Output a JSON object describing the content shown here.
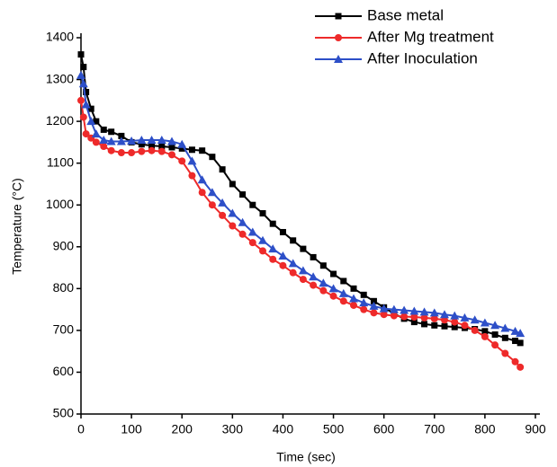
{
  "chart_data": {
    "type": "line",
    "x_label": "Time (sec)",
    "y_label": "Temperature (°C)",
    "x": [
      0,
      5,
      10,
      20,
      30,
      45,
      60,
      80,
      100,
      120,
      140,
      160,
      180,
      200,
      220,
      240,
      260,
      280,
      300,
      320,
      340,
      360,
      380,
      400,
      420,
      440,
      460,
      480,
      500,
      520,
      540,
      560,
      580,
      600,
      620,
      640,
      660,
      680,
      700,
      720,
      740,
      760,
      780,
      800,
      820,
      840,
      860,
      870
    ],
    "series": [
      {
        "name": "Base metal",
        "color": "#000000",
        "marker": "square",
        "values": [
          1360,
          1330,
          1270,
          1230,
          1200,
          1180,
          1175,
          1165,
          1150,
          1145,
          1142,
          1140,
          1138,
          1135,
          1132,
          1130,
          1115,
          1085,
          1050,
          1025,
          1000,
          980,
          955,
          935,
          915,
          895,
          875,
          855,
          835,
          818,
          800,
          785,
          770,
          755,
          740,
          728,
          720,
          715,
          712,
          710,
          708,
          706,
          703,
          698,
          690,
          682,
          675,
          670
        ]
      },
      {
        "name": "After Mg treatment",
        "color": "#ee2a2a",
        "marker": "circle",
        "values": [
          1250,
          1210,
          1170,
          1160,
          1150,
          1140,
          1130,
          1125,
          1125,
          1128,
          1130,
          1128,
          1120,
          1105,
          1070,
          1030,
          1000,
          975,
          950,
          930,
          910,
          890,
          870,
          855,
          838,
          822,
          808,
          795,
          782,
          770,
          760,
          750,
          742,
          738,
          735,
          733,
          732,
          730,
          728,
          725,
          720,
          712,
          700,
          685,
          665,
          645,
          625,
          612
        ]
      },
      {
        "name": "After Inoculation",
        "color": "#2d4fc8",
        "marker": "triangle",
        "values": [
          1310,
          1290,
          1240,
          1200,
          1170,
          1155,
          1152,
          1152,
          1153,
          1155,
          1155,
          1155,
          1152,
          1145,
          1105,
          1060,
          1030,
          1005,
          980,
          958,
          935,
          915,
          895,
          878,
          860,
          843,
          828,
          813,
          800,
          788,
          776,
          766,
          758,
          752,
          750,
          748,
          746,
          744,
          742,
          738,
          735,
          730,
          725,
          718,
          712,
          705,
          698,
          693
        ]
      }
    ],
    "xlim": [
      0,
      900
    ],
    "xticks": [
      0,
      100,
      200,
      300,
      400,
      500,
      600,
      700,
      800,
      900
    ],
    "ylim": [
      500,
      1400
    ],
    "yticks": [
      500,
      600,
      700,
      800,
      900,
      1000,
      1100,
      1200,
      1300,
      1400
    ],
    "legend": "top-right"
  }
}
